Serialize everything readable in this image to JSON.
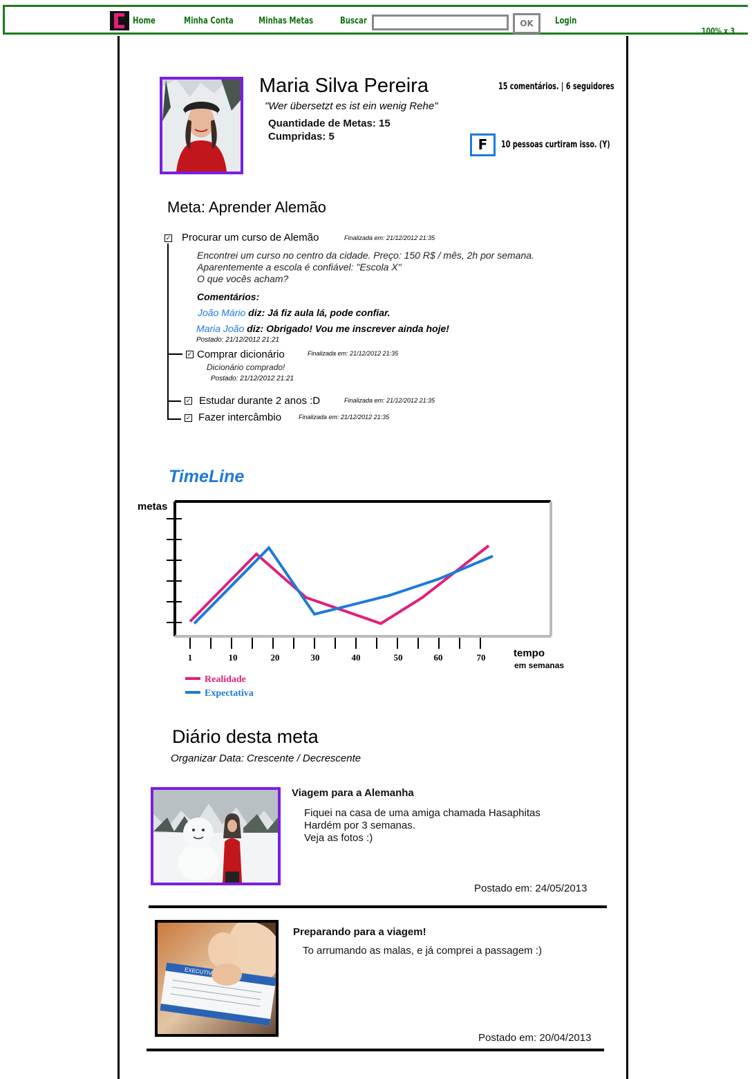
{
  "nav": {
    "home": "Home",
    "account": "Minha Conta",
    "goals": "Minhas Metas",
    "search_label": "Buscar",
    "search_value": "",
    "ok": "OK",
    "login": "Login",
    "zoom": "100% x 3"
  },
  "profile": {
    "name": "Maria Silva Pereira",
    "quote": "\"Wer übersetzt es ist ein wenig Rehe\"",
    "goals_count": "Quantidade de Metas: 15",
    "completed": "Cumpridas: 5",
    "social_stats": "15 comentários. | 6 seguidores",
    "fb_icon_letter": "F",
    "likes": "10 pessoas curtiram isso. (Y)"
  },
  "goal": {
    "title": "Meta: Aprender Alemão",
    "tasks": [
      {
        "label": "Procurar um curso de Alemão",
        "finished": "Finalizada em: 21/12/2012   21:35",
        "description": [
          "Encontrei um curso no centro da cidade. Preço: 150 R$ / mês, 2h por semana.",
          "Aparentemente a escola é confiável: \"Escola X\"",
          "O que vocês acham?"
        ],
        "comments_heading": "Comentários:",
        "comments": [
          {
            "author": "João Mário",
            "says": " diz:",
            "text": "  Já fiz aula lá, pode confiar."
          },
          {
            "author": "Maria João",
            "says": " diz:",
            "text": " Obrigado! Vou me inscrever ainda hoje!"
          }
        ],
        "posted": "Postado: 21/12/2012 21:21"
      },
      {
        "label": "Comprar dicionário",
        "finished": "Finalizada em: 21/12/2012   21:35",
        "description": [
          "Dicionário comprado!"
        ],
        "posted": "Postado: 21/12/2012 21:21"
      },
      {
        "label": "Estudar durante 2 anos :D",
        "finished": "Finalizada em: 21/12/2012   21:35"
      },
      {
        "label": "Fazer intercâmbio",
        "finished": "Finalizada em: 21/12/2012   21:35"
      }
    ]
  },
  "timeline": {
    "title": "TimeLine"
  },
  "chart_data": {
    "type": "line",
    "ylabel": "metas",
    "xlabel": "tempo",
    "xlabel_sub": "em semanas",
    "x_ticks": [
      "1",
      "10",
      "20",
      "30",
      "40",
      "50",
      "60",
      "70"
    ],
    "xlim": [
      0,
      87
    ],
    "ylim": [
      0,
      6
    ],
    "series": [
      {
        "name": "Realidade",
        "color": "#e0207a",
        "x": [
          0,
          16,
          28,
          46,
          56,
          72
        ],
        "y": [
          0.05,
          3.3,
          1.2,
          -0.05,
          1.2,
          3.7
        ]
      },
      {
        "name": "Expectativa",
        "color": "#1e7ad8",
        "x": [
          1,
          19,
          30,
          48,
          60,
          73
        ],
        "y": [
          -0.05,
          3.6,
          0.4,
          1.3,
          2.1,
          3.2
        ]
      }
    ]
  },
  "diary": {
    "title": "Diário desta meta",
    "sort": "Organizar Data: Crescente / Decrescente",
    "entries": [
      {
        "title": "Viagem para a Alemanha",
        "body": [
          "Fiquei na casa de uma amiga chamada Hasaphitas",
          "Hardém por 3 semanas.",
          "Veja as fotos :)"
        ],
        "posted": "Postado em: 24/05/2013"
      },
      {
        "title": "Preparando para a viagem!",
        "body": [
          "To arrumando as malas, e já comprei a passagem :)"
        ],
        "posted": "Postado em: 20/04/2013",
        "ticket_text": "EXECUTIVE CLASS"
      }
    ]
  },
  "colors": {
    "nav_green": "#1e7a1e",
    "accent_purple": "#7a1fe0",
    "link_blue": "#1e7ad8",
    "reality_pink": "#e0207a"
  }
}
